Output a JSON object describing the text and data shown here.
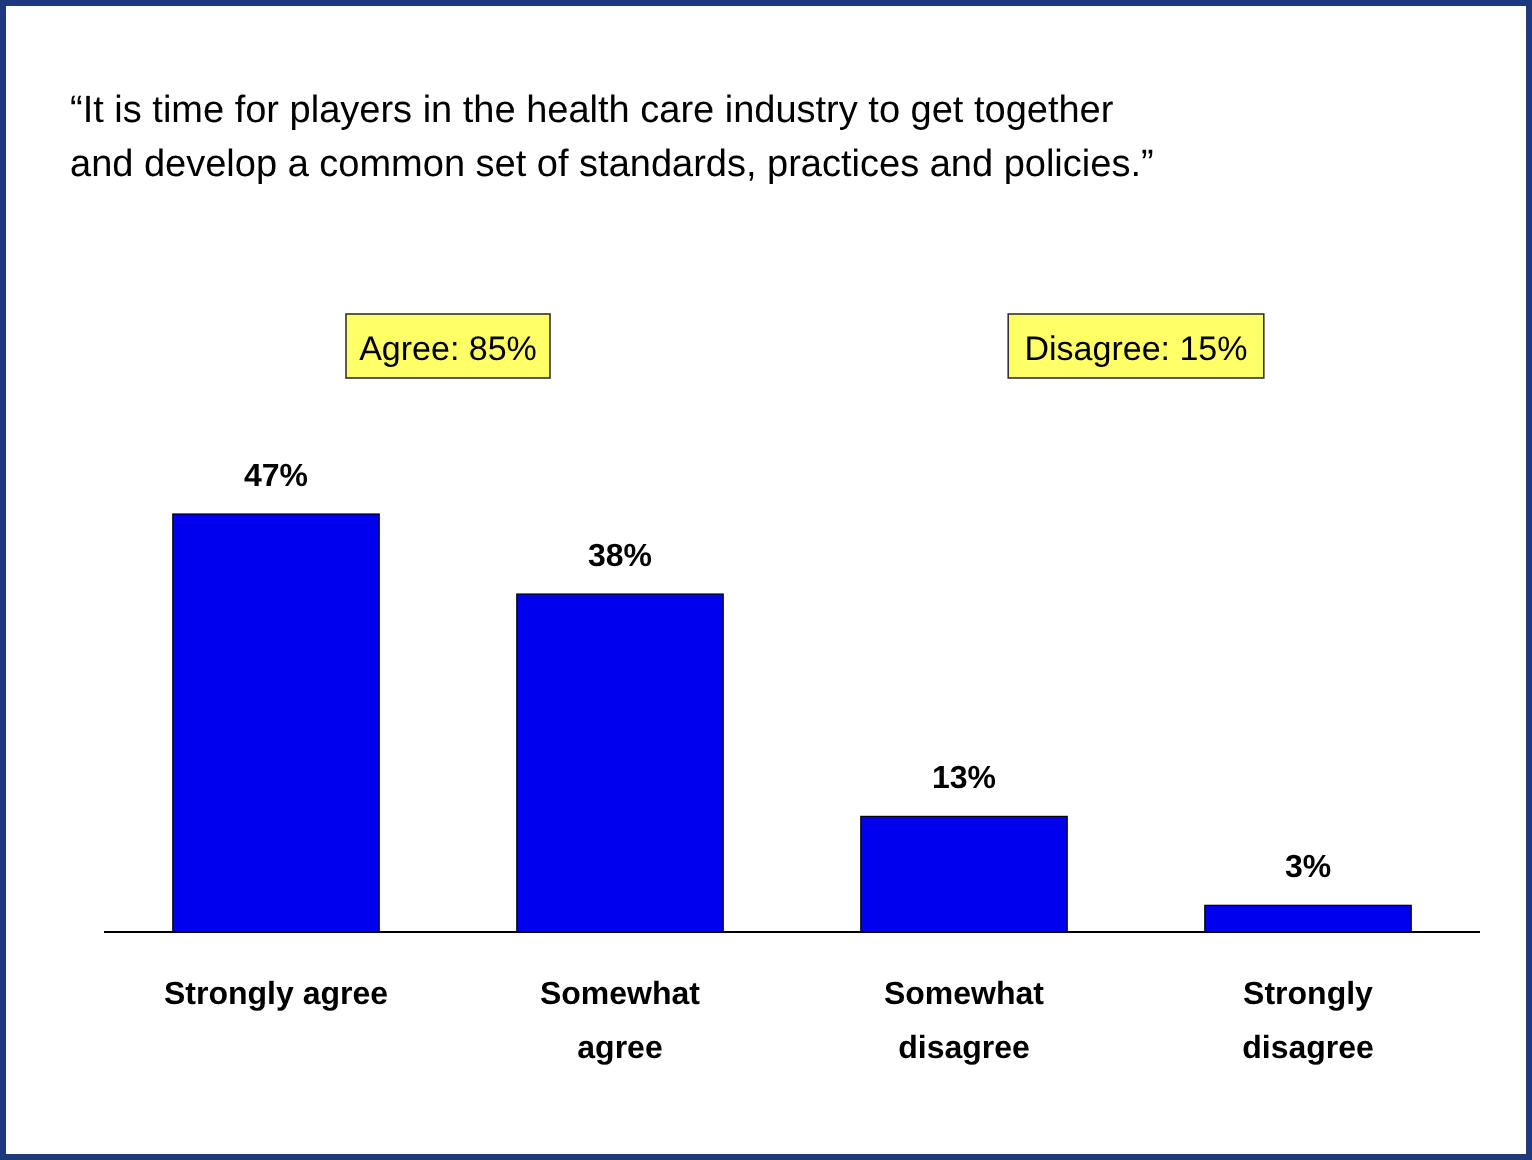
{
  "chart_data": {
    "type": "bar",
    "title": "“It is time for players in the health care industry to get together\nand develop a common set of standards, practices and policies.”",
    "categories": [
      "Strongly agree",
      "Somewhat\nagree",
      "Somewhat\ndisagree",
      "Strongly\ndisagree"
    ],
    "values": [
      47,
      38,
      13,
      3
    ],
    "color": "#0000ee",
    "value_labels": [
      "47%",
      "38%",
      "13%",
      "3%"
    ],
    "annotations": [
      "Agree: 85%",
      "Disagree: 15%"
    ]
  }
}
